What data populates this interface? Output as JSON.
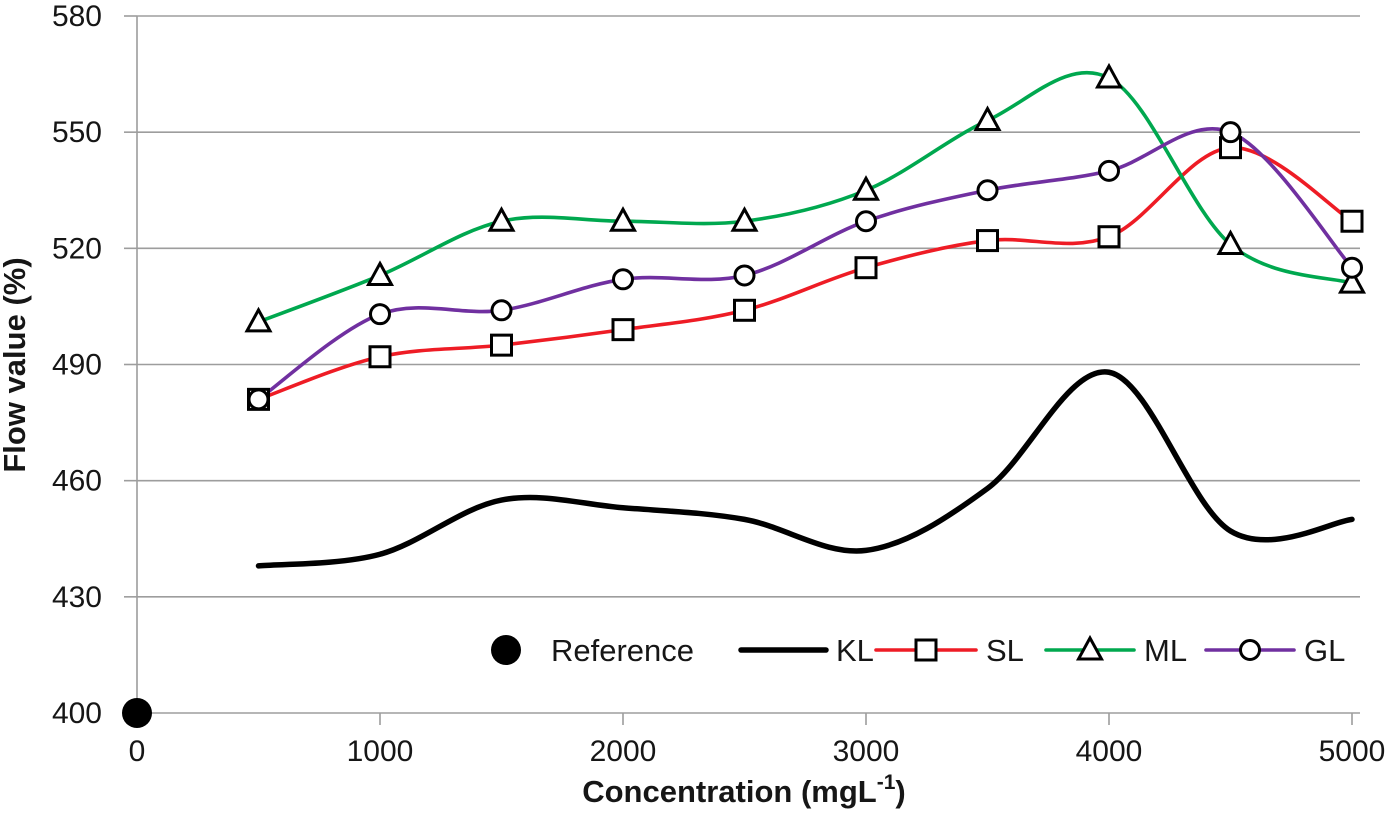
{
  "chart_data": {
    "type": "line",
    "title": "",
    "ylabel": "Flow value (%)",
    "xlabel_parts": {
      "pre": "Concentration (mgL",
      "sup": "-1",
      "post": ")"
    },
    "xlim": [
      0,
      5000
    ],
    "ylim": [
      400,
      580
    ],
    "x_ticks": [
      0,
      1000,
      2000,
      3000,
      4000,
      5000
    ],
    "y_ticks": [
      400,
      430,
      460,
      490,
      520,
      550,
      580
    ],
    "grid": "horizontal-on",
    "legend_position": "bottom-inside-horizontal",
    "x": [
      500,
      1000,
      1500,
      2000,
      2500,
      3000,
      3500,
      4000,
      4500,
      5000
    ],
    "series": [
      {
        "name": "Reference",
        "kind": "point",
        "x": [
          0
        ],
        "values": [
          400
        ],
        "color": "#000000",
        "marker": "filled-circle"
      },
      {
        "name": "KL",
        "kind": "smooth-line",
        "values": [
          438,
          441,
          455,
          453,
          450,
          442,
          458,
          488,
          447,
          450
        ],
        "color": "#000000",
        "marker": "none",
        "line_width": 5.5
      },
      {
        "name": "SL",
        "kind": "smooth-line",
        "values": [
          481,
          492,
          495,
          499,
          504,
          515,
          522,
          523,
          546,
          527
        ],
        "color": "#ee1c25",
        "marker": "square",
        "line_width": 3.6
      },
      {
        "name": "ML",
        "kind": "smooth-line",
        "values": [
          501,
          513,
          527,
          527,
          527,
          535,
          553,
          564,
          521,
          511
        ],
        "color": "#00a84f",
        "marker": "triangle",
        "line_width": 3.6
      },
      {
        "name": "GL",
        "kind": "smooth-line",
        "values": [
          481,
          503,
          504,
          512,
          513,
          527,
          535,
          540,
          550,
          515
        ],
        "color": "#7030a0",
        "marker": "circle",
        "line_width": 3.6
      }
    ],
    "legend_labels": [
      "Reference",
      "KL",
      "SL",
      "ML",
      "GL"
    ],
    "axis_color": "#9d9d9d",
    "marker_stroke_color": "#000000",
    "marker_fill_color": "#ffffff",
    "text_color": "#161616"
  }
}
